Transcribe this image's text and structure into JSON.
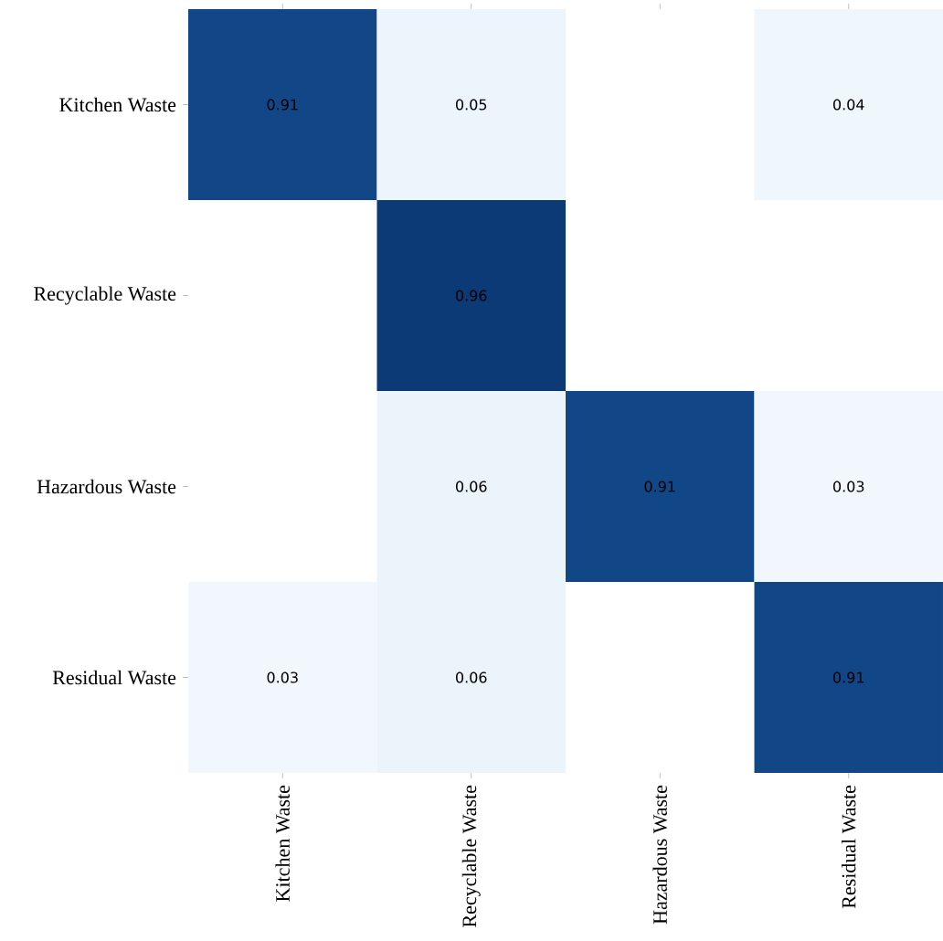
{
  "chart_data": {
    "type": "heatmap",
    "categories": [
      "Kitchen Waste",
      "Recyclable Waste",
      "Hazardous Waste",
      "Residual Waste"
    ],
    "y_categories": [
      "Kitchen Waste",
      "Recyclable Waste",
      "Hazardous Waste",
      "Residual Waste"
    ],
    "cells": [
      [
        0.91,
        0.05,
        null,
        0.04
      ],
      [
        null,
        0.96,
        null,
        null
      ],
      [
        null,
        0.06,
        0.91,
        0.03
      ],
      [
        0.03,
        0.06,
        null,
        0.91
      ]
    ],
    "data_labels": true
  }
}
